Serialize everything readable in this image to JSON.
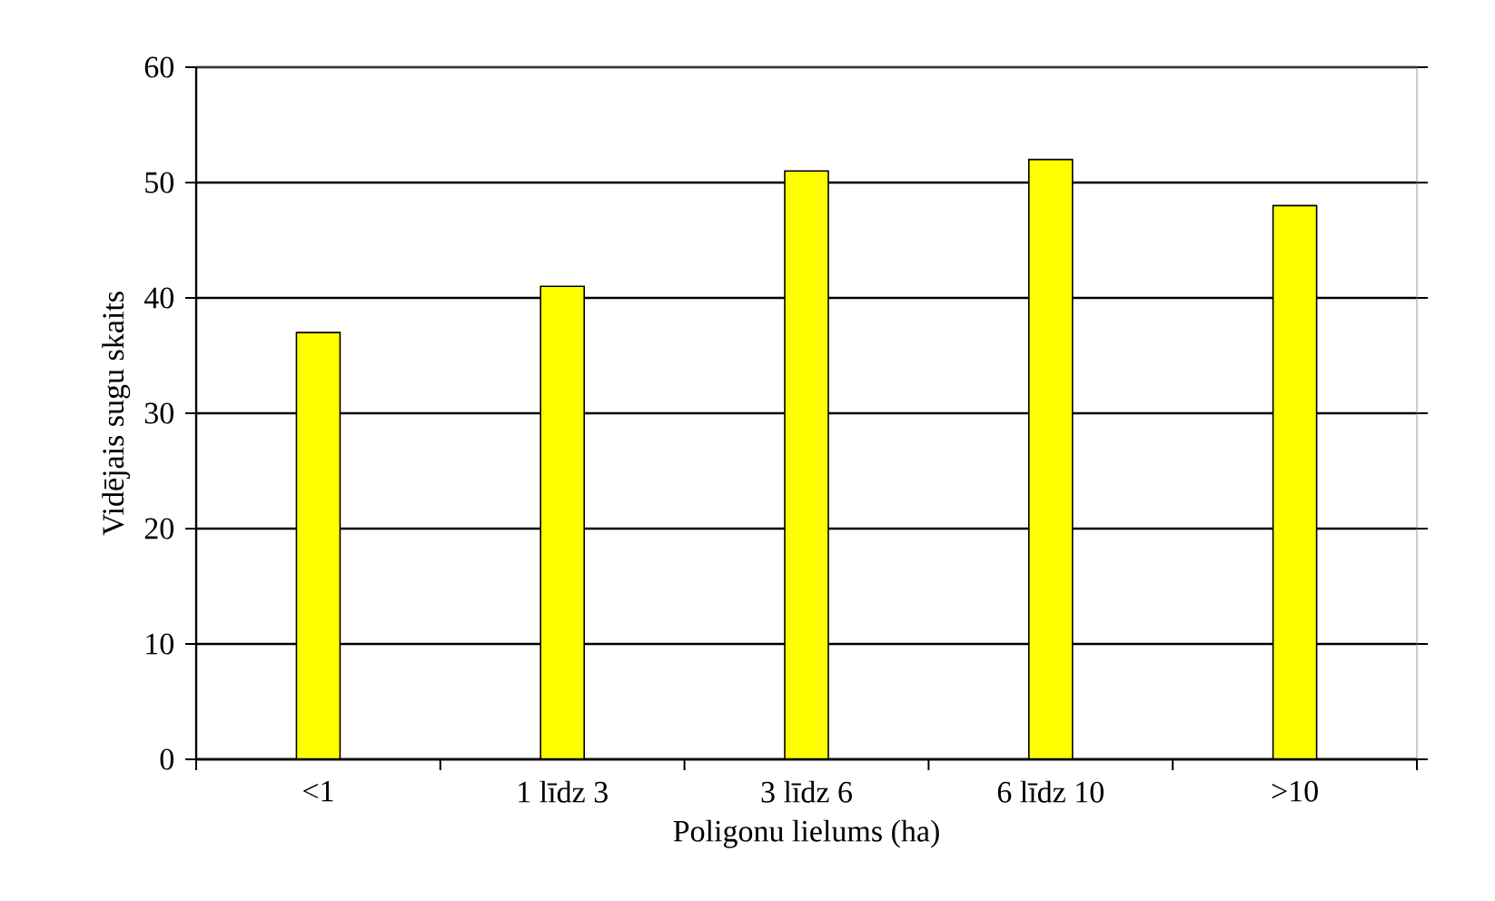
{
  "chart_data": {
    "type": "bar",
    "xlabel": "Poligonu lielums (ha)",
    "ylabel": "Vidējais sugu skaits",
    "categories": [
      "<1",
      "1 līdz 3",
      "3 līdz 6",
      "6 līdz 10",
      ">10"
    ],
    "values": [
      37,
      41,
      51,
      52,
      48
    ],
    "color": "#ffff00",
    "ylim": [
      0,
      60
    ],
    "yticks": [
      0,
      10,
      20,
      30,
      40,
      50,
      60
    ],
    "grid": "y"
  }
}
